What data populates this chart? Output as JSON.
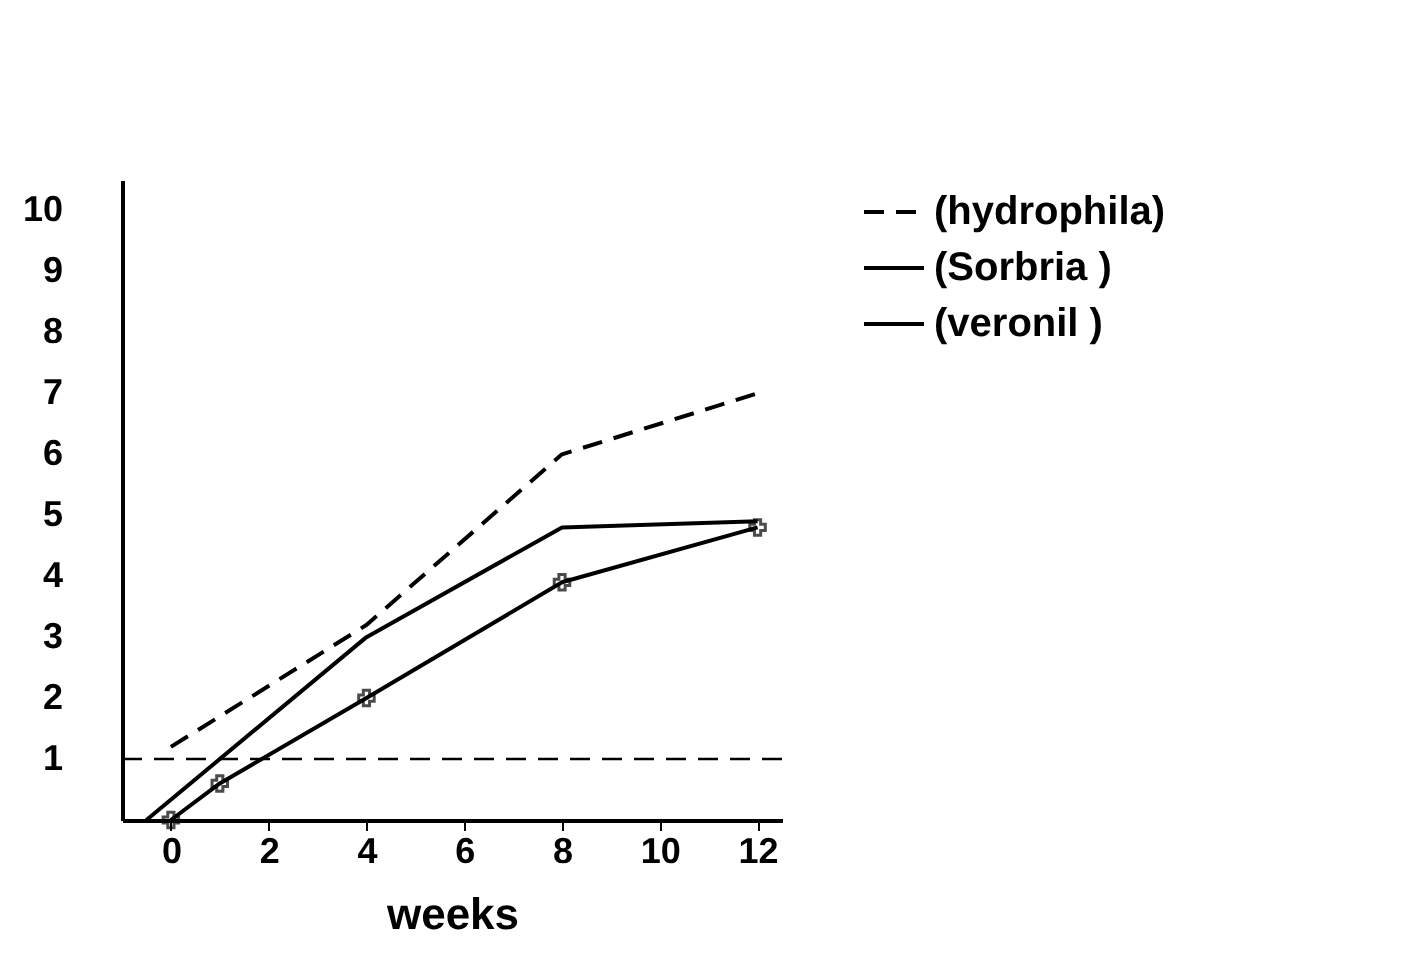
{
  "chart_data": {
    "type": "line",
    "xlabel": "weeks",
    "series": [
      {
        "name": "(hydrophila)",
        "color": "#000000",
        "line_style": "dashed",
        "marker": "none",
        "x": [
          0,
          4,
          8,
          12
        ],
        "values": [
          1.2,
          3.2,
          6,
          7
        ]
      },
      {
        "name": "(Sorbria )",
        "color": "#000000",
        "line_style": "solid",
        "marker": "none",
        "x": [
          -0.5,
          4,
          8,
          12
        ],
        "values": [
          0,
          3,
          4.8,
          4.9
        ]
      },
      {
        "name": "(veronil )",
        "color": "#000000",
        "line_style": "solid",
        "marker": "cross",
        "x": [
          0,
          1,
          4,
          8,
          12
        ],
        "values": [
          0,
          0.6,
          2,
          3.9,
          4.8
        ]
      }
    ],
    "ref_lines": [
      {
        "axis": "y",
        "value": 1,
        "line_style": "dashed"
      }
    ],
    "xlim": [
      -1,
      12.5
    ],
    "xticks": [
      0,
      2,
      4,
      6,
      8,
      10,
      12
    ],
    "ylim": [
      0,
      10.5
    ],
    "yticks": [
      1,
      2,
      3,
      4,
      5,
      6,
      7,
      8,
      9,
      10
    ],
    "grid": false,
    "legend": "top right"
  }
}
